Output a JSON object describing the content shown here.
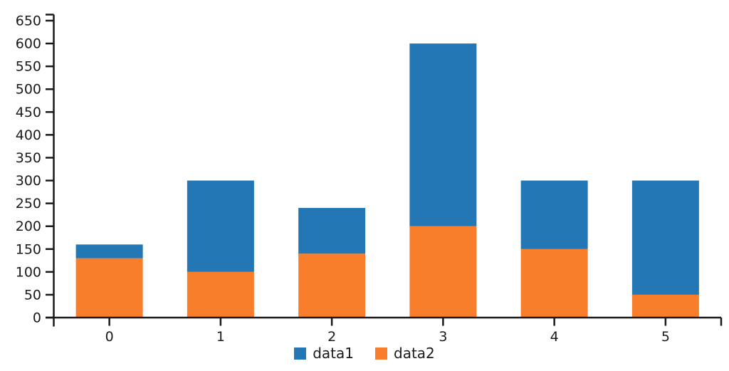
{
  "chart_data": {
    "type": "bar",
    "stacked": true,
    "title": "",
    "xlabel": "",
    "ylabel": "",
    "categories": [
      "0",
      "1",
      "2",
      "3",
      "4",
      "5"
    ],
    "series": [
      {
        "name": "data1",
        "color": "#2277b4",
        "values": [
          30,
          200,
          100,
          400,
          150,
          250
        ]
      },
      {
        "name": "data2",
        "color": "#f97e2b",
        "values": [
          130,
          100,
          140,
          200,
          150,
          50
        ]
      }
    ],
    "stack_order_bottom_to_top": [
      "data2",
      "data1"
    ],
    "stacked_totals": [
      160,
      300,
      240,
      600,
      300,
      300
    ],
    "ylim": [
      0,
      650
    ],
    "yticks": [
      0,
      50,
      100,
      150,
      200,
      250,
      300,
      350,
      400,
      450,
      500,
      550,
      600,
      650
    ],
    "grid": false,
    "legend_position": "bottom",
    "axis_color": "#1a1a1a",
    "background": "#ffffff"
  }
}
